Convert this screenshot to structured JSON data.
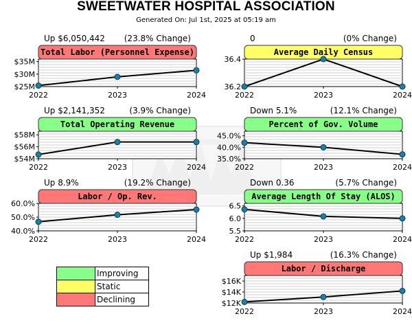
{
  "title": "SWEETWATER HOSPITAL ASSOCIATION",
  "subtitle": "Generated On: Jul 1st, 2025 at 05:19 am",
  "colors": {
    "improving": "#88ff88",
    "static": "#ffff66",
    "declining": "#ff7777",
    "marker": "#1f7fa0",
    "line": "#000000"
  },
  "legend": [
    {
      "label": "Improving",
      "status": "improving"
    },
    {
      "label": "Static",
      "status": "static"
    },
    {
      "label": "Declining",
      "status": "declining"
    }
  ],
  "chart_data": [
    {
      "type": "line",
      "title": "Total Labor (Personnel Expense)",
      "summary_left": "Up $6,050,442",
      "summary_right": "(23.8% Change)",
      "status": "declining",
      "categories": [
        "2022",
        "2023",
        "2024"
      ],
      "values": [
        25.4,
        28.9,
        31.5
      ],
      "ylim": [
        25,
        36
      ],
      "yticks": [
        {
          "v": 25,
          "label": "$25M"
        },
        {
          "v": 30,
          "label": "$30M"
        },
        {
          "v": 35,
          "label": "$35M"
        }
      ],
      "grid": true
    },
    {
      "type": "line",
      "title": "Average Daily Census",
      "summary_left": "0",
      "summary_right": "(0% Change)",
      "status": "static",
      "categories": [
        "2022",
        "2023",
        "2024"
      ],
      "values": [
        36.2,
        36.4,
        36.2
      ],
      "ylim": [
        36.2,
        36.4
      ],
      "yticks": [
        {
          "v": 36.2,
          "label": "36.2"
        },
        {
          "v": 36.4,
          "label": "36.4"
        }
      ],
      "grid": true
    },
    {
      "type": "line",
      "title": "Total Operating Revenue",
      "summary_left": "Up $2,141,352",
      "summary_right": "(3.9% Change)",
      "status": "improving",
      "categories": [
        "2022",
        "2023",
        "2024"
      ],
      "values": [
        54.7,
        56.8,
        56.8
      ],
      "ylim": [
        54,
        58.6
      ],
      "yticks": [
        {
          "v": 54,
          "label": "$54M"
        },
        {
          "v": 56,
          "label": "$56M"
        },
        {
          "v": 58,
          "label": "$58M"
        }
      ],
      "grid": true
    },
    {
      "type": "line",
      "title": "Percent of Gov. Volume",
      "summary_left": "Down 5.1%",
      "summary_right": "(12.1% Change)",
      "status": "improving",
      "categories": [
        "2022",
        "2023",
        "2024"
      ],
      "values": [
        42.0,
        40.0,
        36.9
      ],
      "ylim": [
        35,
        47
      ],
      "yticks": [
        {
          "v": 35,
          "label": "35.0%"
        },
        {
          "v": 40,
          "label": "40.0%"
        },
        {
          "v": 45,
          "label": "45.0%"
        }
      ],
      "grid": true
    },
    {
      "type": "line",
      "title": "Labor / Op. Rev.",
      "summary_left": "Up 8.9%",
      "summary_right": "(19.2% Change)",
      "status": "declining",
      "categories": [
        "2022",
        "2023",
        "2024"
      ],
      "values": [
        46.6,
        51.7,
        55.5
      ],
      "ylim": [
        40,
        60
      ],
      "yticks": [
        {
          "v": 40,
          "label": "40.0%"
        },
        {
          "v": 50,
          "label": "50.0%"
        },
        {
          "v": 60,
          "label": "60.0%"
        }
      ],
      "grid": true
    },
    {
      "type": "line",
      "title": "Average Length Of Stay (ALOS)",
      "summary_left": "Down 0.36",
      "summary_right": "(5.7% Change)",
      "status": "improving",
      "categories": [
        "2022",
        "2023",
        "2024"
      ],
      "values": [
        6.36,
        6.08,
        6.0
      ],
      "ylim": [
        5.5,
        6.6
      ],
      "yticks": [
        {
          "v": 5.5,
          "label": "5.5"
        },
        {
          "v": 6.0,
          "label": "6.0"
        },
        {
          "v": 6.5,
          "label": "6.5"
        }
      ],
      "grid": true
    },
    {
      "type": "line",
      "title": "Labor / Discharge",
      "summary_left": "Up $1,984",
      "summary_right": "(16.3% Change)",
      "status": "declining",
      "categories": [
        "2022",
        "2023",
        "2024"
      ],
      "values": [
        12.2,
        13.1,
        14.2
      ],
      "ylim": [
        12,
        17
      ],
      "yticks": [
        {
          "v": 12,
          "label": "$12K"
        },
        {
          "v": 14,
          "label": "$14K"
        },
        {
          "v": 16,
          "label": "$16K"
        }
      ],
      "grid": true
    }
  ]
}
